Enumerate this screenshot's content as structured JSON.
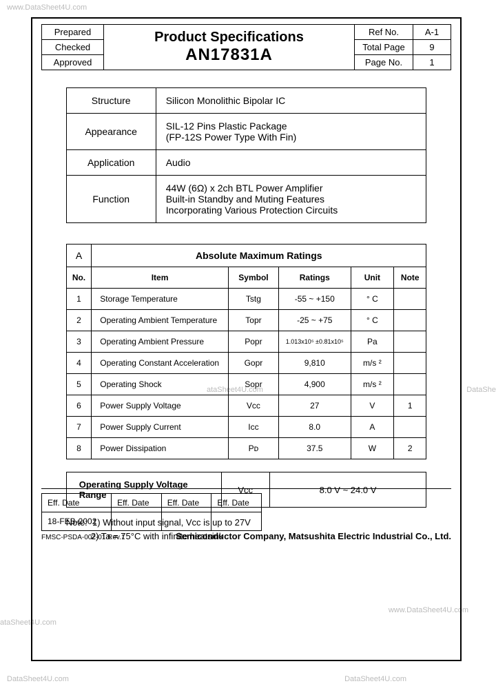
{
  "watermarks": {
    "top_left": "www.DataSheet4U.com",
    "mid_right": "DataShe",
    "mid_center": "ataSheet4U.com",
    "bottom_left1": "ataSheet4U.com",
    "bottom_left2": "DataSheet4U.com",
    "bottom_right1": "www.DataSheet4U.com",
    "bottom_right2": "DataSheet4U.com"
  },
  "header": {
    "prepared": "Prepared",
    "checked": "Checked",
    "approved": "Approved",
    "title": "Product Specifications",
    "part": "AN17831A",
    "ref_no_label": "Ref No.",
    "ref_no": "A-1",
    "total_page_label": "Total Page",
    "total_page": "9",
    "page_no_label": "Page No.",
    "page_no": "1"
  },
  "spec": {
    "structure_label": "Structure",
    "structure": "Silicon Monolithic Bipolar IC",
    "appearance_label": "Appearance",
    "appearance": "SIL-12 Pins Plastic Package\n(FP-12S Power Type With Fin)",
    "application_label": "Application",
    "application": "Audio",
    "function_label": "Function",
    "function": "44W (6Ω) x 2ch BTL Power Amplifier\nBuilt-in Standby and Muting Features\nIncorporating Various Protection Circuits"
  },
  "ratings": {
    "section": "A",
    "title": "Absolute Maximum Ratings",
    "cols": [
      "No.",
      "Item",
      "Symbol",
      "Ratings",
      "Unit",
      "Note"
    ],
    "rows": [
      {
        "no": "1",
        "item": "Storage Temperature",
        "symbol": "Tstg",
        "ratings": "-55 ~ +150",
        "unit": "° C",
        "note": ""
      },
      {
        "no": "2",
        "item": "Operating Ambient Temperature",
        "symbol": "Topr",
        "ratings": "-25 ~ +75",
        "unit": "° C",
        "note": ""
      },
      {
        "no": "3",
        "item": "Operating Ambient Pressure",
        "symbol": "Popr",
        "ratings": "1.013x10⁵ ±0.81x10⁵",
        "unit": "Pa",
        "note": ""
      },
      {
        "no": "4",
        "item": "Operating Constant Acceleration",
        "symbol": "Gopr",
        "ratings": "9,810",
        "unit": "m/s ²",
        "note": ""
      },
      {
        "no": "5",
        "item": "Operating Shock",
        "symbol": "Sopr",
        "ratings": "4,900",
        "unit": "m/s ²",
        "note": ""
      },
      {
        "no": "6",
        "item": "Power Supply Voltage",
        "symbol": "Vcc",
        "ratings": "27",
        "unit": "V",
        "note": "1"
      },
      {
        "no": "7",
        "item": "Power Supply Current",
        "symbol": "Icc",
        "ratings": "8.0",
        "unit": "A",
        "note": ""
      },
      {
        "no": "8",
        "item": "Power Dissipation",
        "symbol": "Pᴅ",
        "ratings": "37.5",
        "unit": "W",
        "note": "2"
      }
    ]
  },
  "supply": {
    "label": "Operating Supply Voltage Range",
    "symbol": "Vcc",
    "value": "8.0 V  ~ 24.0 V"
  },
  "notes": {
    "lead": "Note:",
    "n1": "1)  Without input signal, Vcc is up to 27V",
    "n2": "2)  Ta = 75°C with infinite heatsink"
  },
  "footer": {
    "eff_date": "Eff. Date",
    "date": "18-FEB-2002",
    "doc_code": "FMSC-PSDA-002-01 Rev.1",
    "company": "Semiconductor Company, Matsushita Electric Industrial Co., Ltd."
  }
}
